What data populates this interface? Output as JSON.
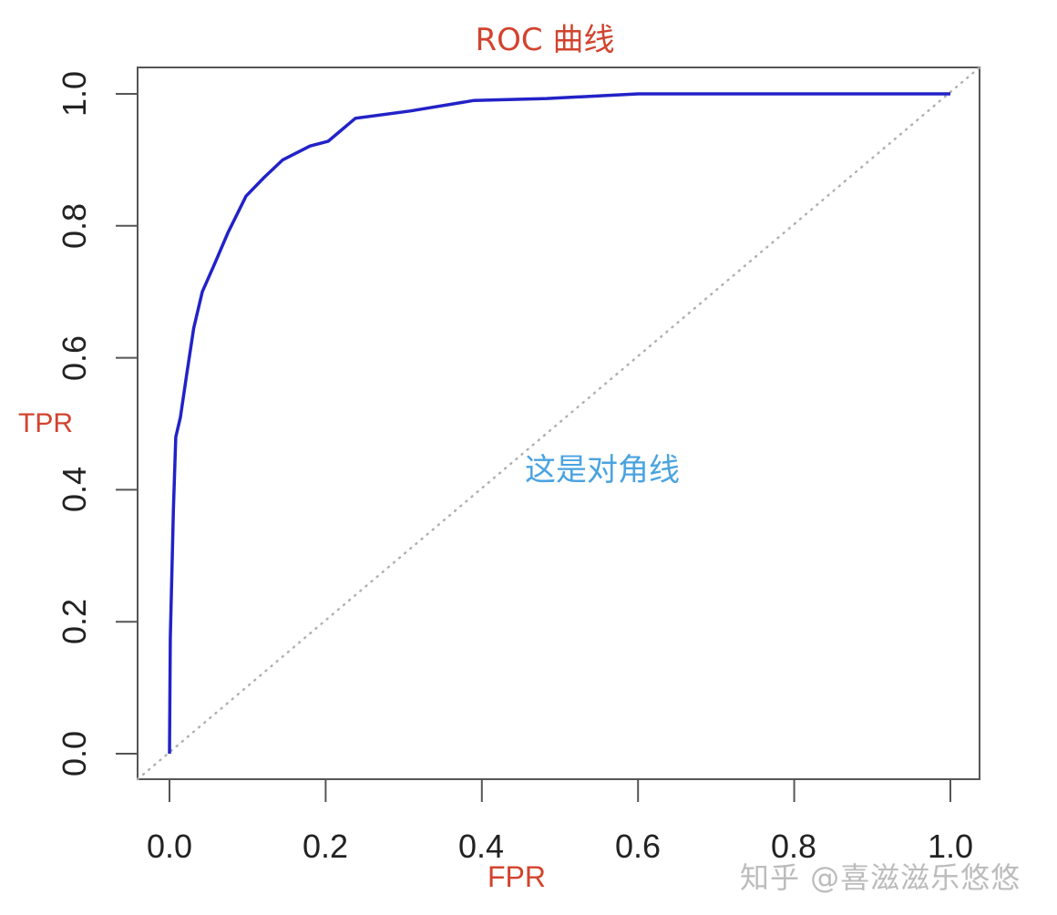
{
  "chart_data": {
    "type": "line",
    "title": "ROC 曲线",
    "xlabel": "FPR",
    "ylabel": "TPR",
    "xlim": [
      0,
      1
    ],
    "ylim": [
      0,
      1
    ],
    "grid": false,
    "x_ticks": [
      "0.0",
      "0.2",
      "0.4",
      "0.6",
      "0.8",
      "1.0"
    ],
    "y_ticks": [
      "0.0",
      "0.2",
      "0.4",
      "0.6",
      "0.8",
      "1.0"
    ],
    "series": [
      {
        "name": "ROC curve",
        "color": "#2222c8",
        "x": [
          0,
          0.001,
          0.005,
          0.008,
          0.014,
          0.022,
          0.031,
          0.042,
          0.057,
          0.075,
          0.098,
          0.121,
          0.145,
          0.18,
          0.203,
          0.238,
          0.308,
          0.39,
          0.483,
          0.6,
          1.0
        ],
        "y": [
          0,
          0.175,
          0.37,
          0.48,
          0.51,
          0.575,
          0.645,
          0.7,
          0.74,
          0.79,
          0.845,
          0.873,
          0.9,
          0.921,
          0.928,
          0.963,
          0.974,
          0.99,
          0.993,
          1.0,
          1.0
        ]
      },
      {
        "name": "对角线",
        "color": "#b0b0b0",
        "style": "dotted",
        "x": [
          0,
          1
        ],
        "y": [
          0,
          1
        ]
      }
    ],
    "annotations": [
      {
        "text": "这是对角线",
        "color": "#4aa3e0"
      },
      {
        "text": "TPR",
        "color": "#d2432e"
      },
      {
        "text": "FPR",
        "color": "#d2432e"
      }
    ]
  },
  "labels": {
    "title": "ROC 曲线",
    "ylabel": "TPR",
    "xlabel": "FPR",
    "diagonal_note": "这是对角线",
    "watermark": "知乎 @喜滋滋乐悠悠"
  },
  "colors": {
    "title": "#d2432e",
    "curve": "#2222c8",
    "diagonal": "#b0b0b0",
    "annotation": "#4aa3e0",
    "axis": "#555555"
  }
}
